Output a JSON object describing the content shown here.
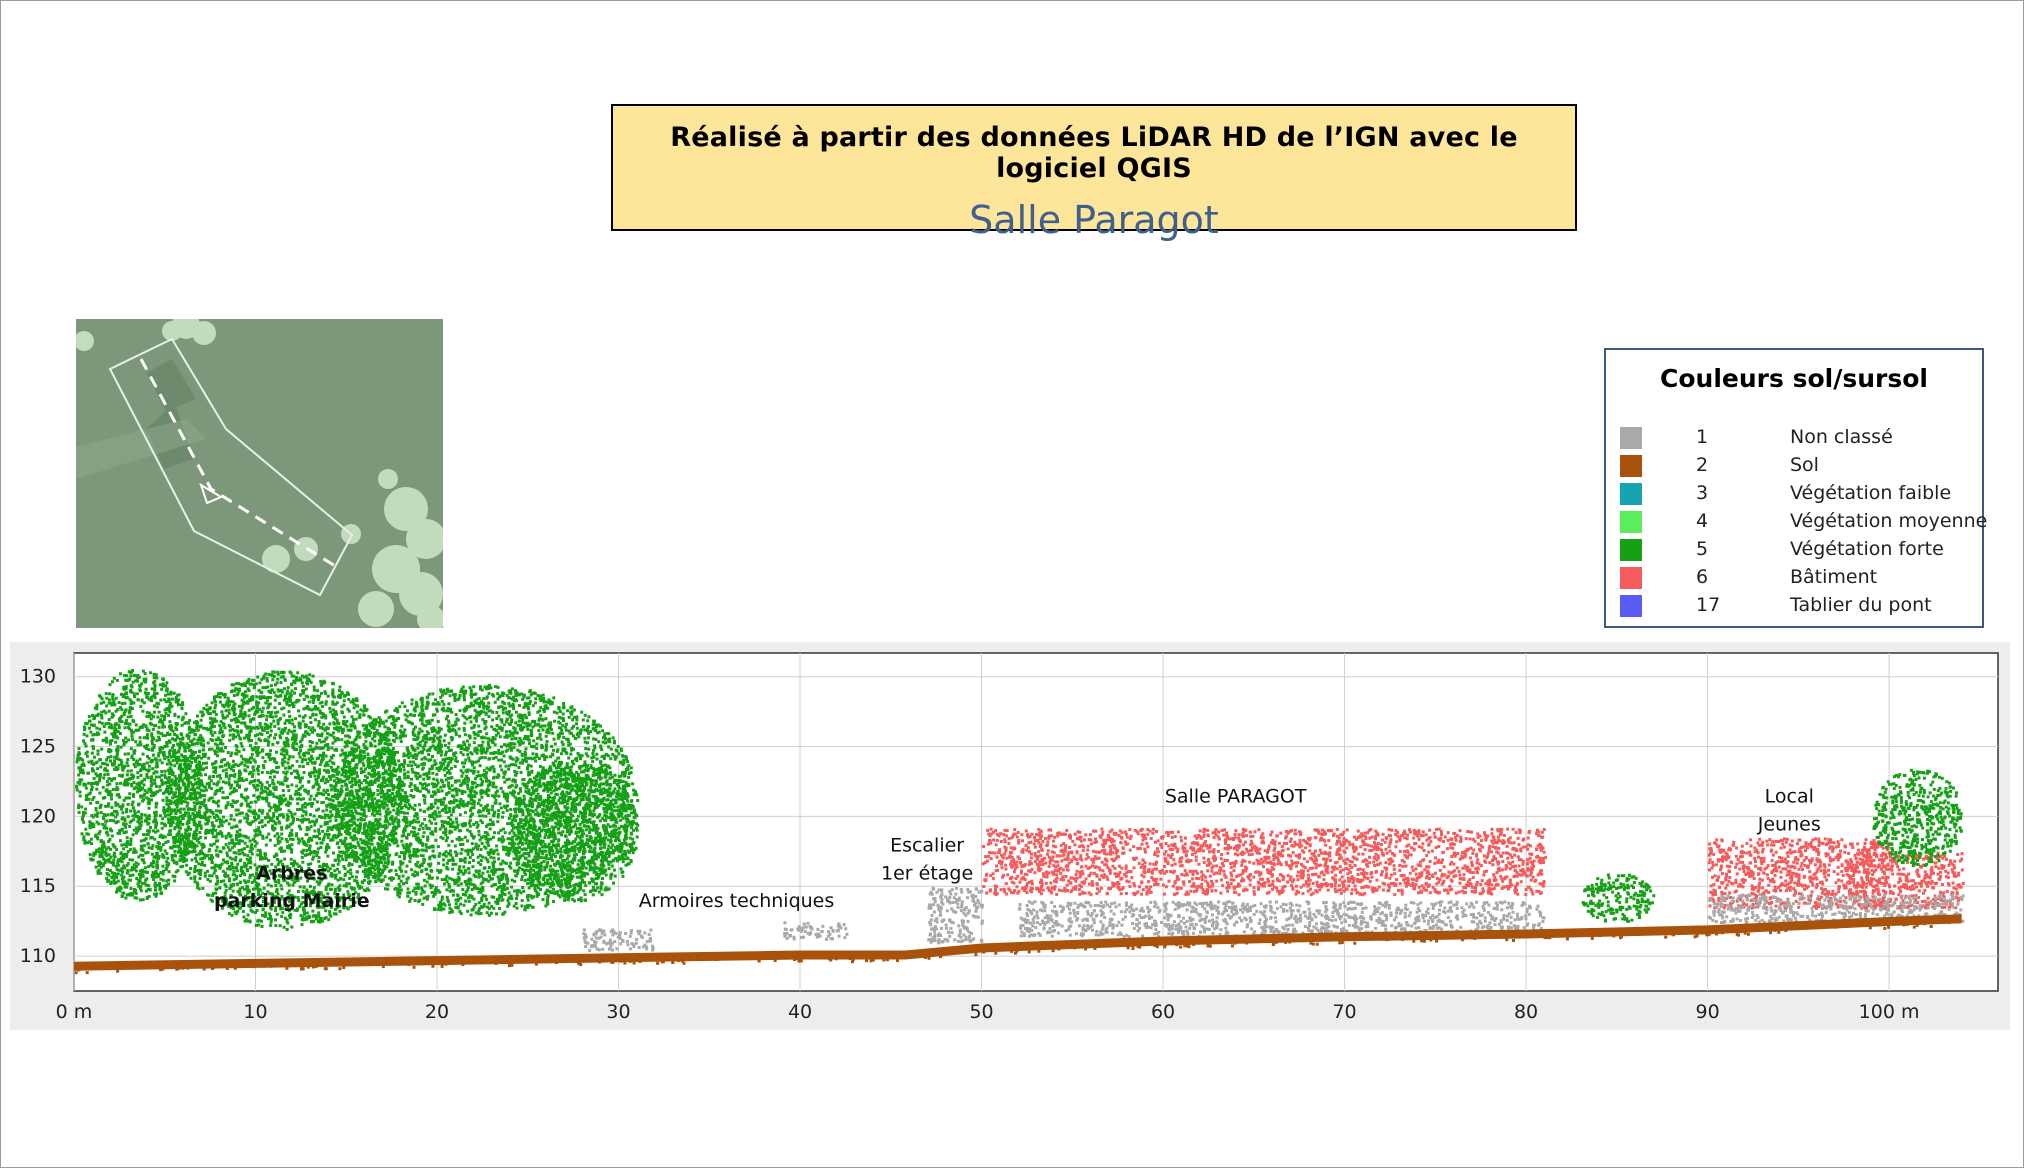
{
  "header": {
    "title": "Réalisé à partir des données LiDAR HD de l’IGN avec le logiciel QGIS",
    "subtitle": "Salle Paragot"
  },
  "minimap": {
    "background_color": "#7e9a7c"
  },
  "legend": {
    "title": "Couleurs sol/sursol",
    "items": [
      {
        "code": "1",
        "label": "Non classé",
        "color": "#a9a9a9"
      },
      {
        "code": "2",
        "label": "Sol",
        "color": "#a8520c"
      },
      {
        "code": "3",
        "label": "Végétation faible",
        "color": "#14a5b0"
      },
      {
        "code": "4",
        "label": "Végétation moyenne",
        "color": "#5aee5a"
      },
      {
        "code": "5",
        "label": "Végétation forte",
        "color": "#15a015"
      },
      {
        "code": "6",
        "label": "Bâtiment",
        "color": "#f45b5b"
      },
      {
        "code": "17",
        "label": "Tablier du pont",
        "color": "#5a5af5"
      }
    ]
  },
  "chart_data": {
    "type": "scatter",
    "title": "",
    "xlabel": "",
    "ylabel": "",
    "x_ticks": [
      "0 m",
      "10",
      "20",
      "30",
      "40",
      "50",
      "60",
      "70",
      "80",
      "90",
      "100 m"
    ],
    "y_ticks": [
      "110",
      "115",
      "120",
      "125",
      "130"
    ],
    "xlim": [
      0,
      106
    ],
    "ylim": [
      107.5,
      131.7
    ],
    "grid": true,
    "ground_profile": [
      [
        0,
        109.6
      ],
      [
        10,
        109.8
      ],
      [
        20,
        110.0
      ],
      [
        30,
        110.2
      ],
      [
        40,
        110.4
      ],
      [
        45.8,
        110.4
      ],
      [
        50,
        110.9
      ],
      [
        60,
        111.4
      ],
      [
        70,
        111.7
      ],
      [
        80,
        111.9
      ],
      [
        90,
        112.2
      ],
      [
        100,
        112.8
      ],
      [
        104,
        113.0
      ]
    ],
    "features": [
      {
        "class": "Végétation forte",
        "from_x": 0,
        "to_x": 7,
        "bottom": 114,
        "top": 130.7
      },
      {
        "class": "Végétation forte",
        "from_x": 5,
        "to_x": 18,
        "bottom": 112,
        "top": 130.5
      },
      {
        "class": "Végétation forte",
        "from_x": 14,
        "to_x": 31,
        "bottom": 113,
        "top": 129.5
      },
      {
        "class": "Végétation forte",
        "from_x": 24,
        "to_x": 31,
        "bottom": 114,
        "top": 124
      },
      {
        "class": "Non classé",
        "from_x": 28,
        "to_x": 32,
        "bottom": 110.5,
        "top": 112
      },
      {
        "class": "Non classé",
        "from_x": 39,
        "to_x": 42.5,
        "bottom": 111.3,
        "top": 112.5
      },
      {
        "class": "Non classé",
        "from_x": 47,
        "to_x": 50,
        "bottom": 111,
        "top": 115
      },
      {
        "class": "Bâtiment",
        "from_x": 50,
        "to_x": 81,
        "bottom": 114.5,
        "top": 119.2
      },
      {
        "class": "Non classé",
        "from_x": 52,
        "to_x": 81,
        "bottom": 111.5,
        "top": 114
      },
      {
        "class": "Végétation forte",
        "from_x": 83,
        "to_x": 87,
        "bottom": 112.5,
        "top": 116
      },
      {
        "class": "Bâtiment",
        "from_x": 90,
        "to_x": 100,
        "bottom": 113.5,
        "top": 118.5
      },
      {
        "class": "Bâtiment",
        "from_x": 97.5,
        "to_x": 104,
        "bottom": 113.5,
        "top": 117.5
      },
      {
        "class": "Végétation forte",
        "from_x": 99,
        "to_x": 104,
        "bottom": 116.5,
        "top": 123.5
      },
      {
        "class": "Non classé",
        "from_x": 90,
        "to_x": 104,
        "bottom": 112.5,
        "top": 114.5
      }
    ],
    "annotations": [
      {
        "text": "Arbres",
        "x": 12,
        "y": 115.5,
        "bold": true
      },
      {
        "text": "parking Mairie",
        "x": 12,
        "y": 113.5,
        "bold": true
      },
      {
        "text": "Armoires techniques",
        "x": 36.5,
        "y": 113.5,
        "bold": false
      },
      {
        "text": "Escalier",
        "x": 47,
        "y": 117.5,
        "bold": false
      },
      {
        "text": "1er étage",
        "x": 47,
        "y": 115.5,
        "bold": false
      },
      {
        "text": "Salle PARAGOT",
        "x": 64,
        "y": 121,
        "bold": false
      },
      {
        "text": "Local",
        "x": 94.5,
        "y": 121,
        "bold": false
      },
      {
        "text": "Jeunes",
        "x": 94.5,
        "y": 119,
        "bold": false
      }
    ]
  }
}
